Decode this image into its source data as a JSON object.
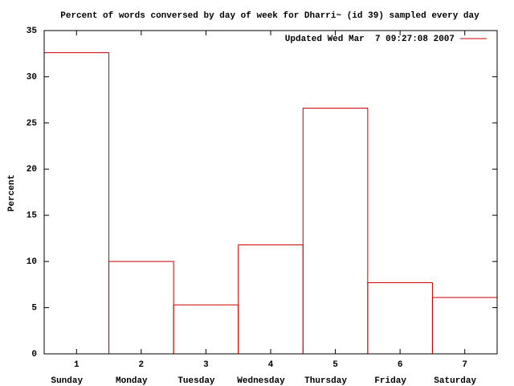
{
  "chart_data": {
    "type": "bar",
    "title": "Percent of words conversed by day of week for Dharri~ (id 39) sampled every day",
    "y_label": "Percent",
    "x": [
      1,
      2,
      3,
      4,
      5,
      6,
      7
    ],
    "categories": [
      "Sunday",
      "Monday",
      "Tuesday",
      "Wednesday",
      "Thursday",
      "Friday",
      "Saturday"
    ],
    "series": [
      {
        "name": "Updated Wed Mar  7 09:27:08 2007",
        "color": "#cc0000",
        "values": [
          32.6,
          10.0,
          5.3,
          11.8,
          26.6,
          7.7,
          6.1
        ]
      }
    ],
    "xlim": [
      0.5,
      7.5
    ],
    "xticks": [
      1,
      2,
      3,
      4,
      5,
      6,
      7
    ],
    "ylim": [
      0,
      35
    ],
    "yticks": [
      0,
      5,
      10,
      15,
      20,
      25,
      30,
      35
    ],
    "legend": "top-right"
  }
}
